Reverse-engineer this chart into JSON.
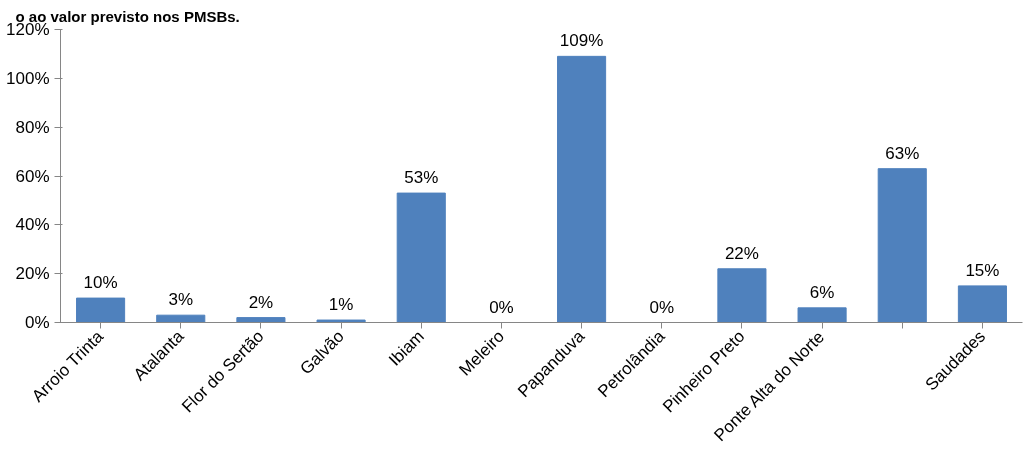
{
  "chart_data": {
    "type": "bar",
    "title": "o ao valor previsto nos PMSBs.",
    "categories": [
      "Arroio Trinta",
      "Atalanta",
      "Flor do Sertão",
      "Galvão",
      "Ibiam",
      "Meleiro",
      "Papanduva",
      "Petrolândia",
      "Pinheiro Preto",
      "Ponte Alta do Norte",
      null,
      "Saudades"
    ],
    "values": [
      10,
      3,
      2,
      1,
      53,
      0,
      109,
      0,
      22,
      6,
      63,
      15
    ],
    "value_labels": [
      "10%",
      "3%",
      "2%",
      "1%",
      "53%",
      "0%",
      "109%",
      "0%",
      "22%",
      "6%",
      "63%",
      "15%"
    ],
    "color": "#4f81bd",
    "ylim": [
      0,
      120
    ],
    "yticks": [
      {
        "value": 0,
        "label": "0%"
      },
      {
        "value": 20,
        "label": "20%"
      },
      {
        "value": 40,
        "label": "40%"
      },
      {
        "value": 60,
        "label": "60%"
      },
      {
        "value": 80,
        "label": "80%"
      },
      {
        "value": 100,
        "label": "100%"
      },
      {
        "value": 120,
        "label": "120%"
      }
    ],
    "grid": false
  }
}
